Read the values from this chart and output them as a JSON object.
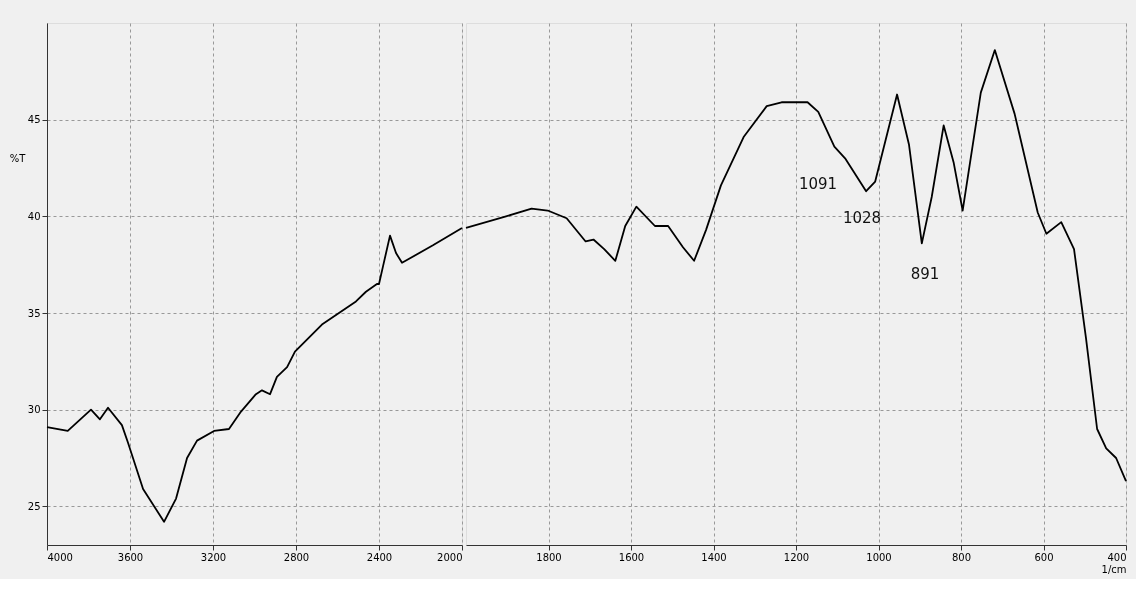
{
  "chart_data": [
    {
      "type": "line",
      "ylabel": "%T",
      "x": [
        4000,
        3900,
        3788,
        3745,
        3706,
        3639,
        3610,
        3537,
        3436,
        3378,
        3325,
        3277,
        3195,
        3123,
        3065,
        2993,
        2964,
        2925,
        2892,
        2843,
        2805,
        2675,
        2511,
        2463,
        2410,
        2400,
        2381,
        2347,
        2318,
        2289,
        2140,
        2000
      ],
      "series": [
        {
          "color": "#000000",
          "values": [
            29.1,
            28.9,
            30.0,
            29.5,
            30.1,
            29.2,
            28.3,
            25.9,
            24.2,
            25.4,
            27.5,
            28.4,
            28.9,
            29.0,
            29.9,
            30.8,
            31.0,
            30.8,
            31.7,
            32.2,
            33.0,
            34.4,
            35.6,
            36.1,
            36.5,
            36.5,
            37.4,
            39.0,
            38.1,
            37.6,
            38.5,
            39.4
          ]
        }
      ],
      "xlim": [
        4000,
        2000
      ],
      "xticks": [
        4000,
        3600,
        3200,
        2800,
        2400,
        2000
      ],
      "ylim": [
        23,
        50
      ],
      "yticks": [
        25,
        30,
        35,
        40,
        45
      ],
      "grid": true,
      "line_style": "solid",
      "marker": "none"
    },
    {
      "type": "line",
      "xlabel": "1/cm",
      "x": [
        2000,
        1903,
        1841,
        1802,
        1756,
        1710,
        1691,
        1665,
        1638,
        1614,
        1587,
        1542,
        1510,
        1474,
        1447,
        1418,
        1382,
        1327,
        1271,
        1235,
        1172,
        1146,
        1107,
        1081,
        1030,
        1008,
        955,
        926,
        895,
        871,
        842,
        818,
        796,
        752,
        718,
        670,
        614,
        593,
        557,
        526,
        497,
        470,
        448,
        424,
        400
      ],
      "series": [
        {
          "color": "#000000",
          "values": [
            39.4,
            40.0,
            40.4,
            40.3,
            39.9,
            38.7,
            38.8,
            38.3,
            37.7,
            39.5,
            40.5,
            39.5,
            39.5,
            38.4,
            37.7,
            39.3,
            41.6,
            44.1,
            45.7,
            45.9,
            45.9,
            45.4,
            43.6,
            43.0,
            41.3,
            41.8,
            46.3,
            43.7,
            38.6,
            41.0,
            44.7,
            42.8,
            40.3,
            46.4,
            48.6,
            45.3,
            40.2,
            39.1,
            39.7,
            38.3,
            33.7,
            29.0,
            28.0,
            27.5,
            26.3
          ]
        }
      ],
      "xlim": [
        2000,
        400
      ],
      "xticks": [
        1800,
        1600,
        1400,
        1200,
        1000,
        800,
        600,
        400
      ],
      "ylim": [
        23,
        50
      ],
      "yticks": [
        25,
        30,
        35,
        40,
        45
      ],
      "tick_labels": "x",
      "grid": true,
      "line_style": "solid",
      "marker": "none",
      "annotations": [
        "1091",
        "1028",
        "891"
      ]
    }
  ]
}
